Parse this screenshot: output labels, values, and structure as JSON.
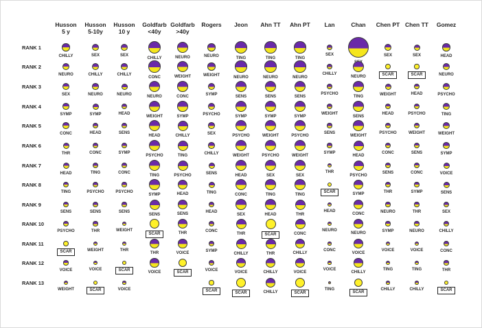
{
  "columns": [
    {
      "line1": "Husson",
      "line2": "5 y"
    },
    {
      "line1": "Husson",
      "line2": "5-10y"
    },
    {
      "line1": "Husson",
      "line2": "10 y"
    },
    {
      "line1": "Goldfarb",
      "line2": "<40y"
    },
    {
      "line1": "Goldfarb",
      "line2": ">40y"
    },
    {
      "line1": "Rogers",
      "line2": ""
    },
    {
      "line1": "Jeon",
      "line2": ""
    },
    {
      "line1": "Ahn TT",
      "line2": ""
    },
    {
      "line1": "Ahn PT",
      "line2": ""
    },
    {
      "line1": "Lan",
      "line2": ""
    },
    {
      "line1": "Chan",
      "line2": ""
    },
    {
      "line1": "Chen PT",
      "line2": ""
    },
    {
      "line1": "Chen TT",
      "line2": ""
    },
    {
      "line1": "Gomez",
      "line2": ""
    }
  ],
  "rows": [
    "RANK 1",
    "RANK 2",
    "RANK 3",
    "RANK 4",
    "RANK 5",
    "RANK 6",
    "RANK 7",
    "RANK 8",
    "RANK 9",
    "RANK 10",
    "RANK 11",
    "RANK 12",
    "RANK 13"
  ],
  "grid": [
    [
      {
        "label": "CHILLY",
        "size": 0.38,
        "purple": 0.5
      },
      {
        "label": "SEX",
        "size": 0.36,
        "purple": 0.55
      },
      {
        "label": "SEX",
        "size": 0.33,
        "purple": 0.55
      },
      {
        "label": "CHILLY",
        "size": 0.62,
        "purple": 0.55
      },
      {
        "label": "NEURO",
        "size": 0.55,
        "purple": 0.55
      },
      {
        "label": "NEURO",
        "size": 0.38,
        "purple": 0.55
      },
      {
        "label": "TING",
        "size": 0.62,
        "purple": 0.55
      },
      {
        "label": "TING",
        "size": 0.58,
        "purple": 0.55
      },
      {
        "label": "TING",
        "size": 0.58,
        "purple": 0.55
      },
      {
        "label": "SEX",
        "size": 0.28,
        "purple": 0.55
      },
      {
        "label": "SEX",
        "size": 1.0,
        "purple": 0.55
      },
      {
        "label": "SEX",
        "size": 0.33,
        "purple": 0.5
      },
      {
        "label": "SEX",
        "size": 0.3,
        "purple": 0.5
      },
      {
        "label": "HEAD",
        "size": 0.38,
        "purple": 0.55
      }
    ],
    [
      {
        "label": "NEURO",
        "size": 0.36,
        "purple": 0.5
      },
      {
        "label": "CHILLY",
        "size": 0.34,
        "purple": 0.55
      },
      {
        "label": "CHILLY",
        "size": 0.32,
        "purple": 0.55
      },
      {
        "label": "CONC",
        "size": 0.58,
        "purple": 0.55
      },
      {
        "label": "WEIGHT",
        "size": 0.55,
        "purple": 0.55
      },
      {
        "label": "WEIGHT",
        "size": 0.38,
        "purple": 0.55
      },
      {
        "label": "NEURO",
        "size": 0.58,
        "purple": 0.55
      },
      {
        "label": "NEURO",
        "size": 0.58,
        "purple": 0.55
      },
      {
        "label": "NEURO",
        "size": 0.58,
        "purple": 0.55
      },
      {
        "label": "CHILLY",
        "size": 0.26,
        "purple": 0.55
      },
      {
        "label": "NEURO",
        "size": 0.55,
        "purple": 0.55
      },
      {
        "label": "SCAR",
        "size": 0.26,
        "purple": 0.0,
        "scar": true
      },
      {
        "label": "SCAR",
        "size": 0.24,
        "purple": 0.0,
        "scar": true
      },
      {
        "label": "NEURO",
        "size": 0.36,
        "purple": 0.55
      }
    ],
    [
      {
        "label": "SEX",
        "size": 0.34,
        "purple": 0.5
      },
      {
        "label": "NEURO",
        "size": 0.32,
        "purple": 0.55
      },
      {
        "label": "NEURO",
        "size": 0.3,
        "purple": 0.55
      },
      {
        "label": "NEURO",
        "size": 0.56,
        "purple": 0.55
      },
      {
        "label": "CONC",
        "size": 0.52,
        "purple": 0.55
      },
      {
        "label": "SYMP",
        "size": 0.36,
        "purple": 0.55
      },
      {
        "label": "SENS",
        "size": 0.56,
        "purple": 0.55
      },
      {
        "label": "SENS",
        "size": 0.56,
        "purple": 0.55
      },
      {
        "label": "SENS",
        "size": 0.56,
        "purple": 0.55
      },
      {
        "label": "PSYCHO",
        "size": 0.26,
        "purple": 0.55
      },
      {
        "label": "TING",
        "size": 0.52,
        "purple": 0.55
      },
      {
        "label": "WEIGHT",
        "size": 0.3,
        "purple": 0.5
      },
      {
        "label": "HEAD",
        "size": 0.28,
        "purple": 0.5
      },
      {
        "label": "PSYCHO",
        "size": 0.36,
        "purple": 0.55
      }
    ],
    [
      {
        "label": "SYMP",
        "size": 0.32,
        "purple": 0.5
      },
      {
        "label": "SYMP",
        "size": 0.3,
        "purple": 0.55
      },
      {
        "label": "HEAD",
        "size": 0.28,
        "purple": 0.55
      },
      {
        "label": "WEIGHT",
        "size": 0.56,
        "purple": 0.55
      },
      {
        "label": "SYMP",
        "size": 0.52,
        "purple": 0.55
      },
      {
        "label": "PSYCHO",
        "size": 0.34,
        "purple": 0.55
      },
      {
        "label": "SYMP",
        "size": 0.56,
        "purple": 0.55
      },
      {
        "label": "SYMP",
        "size": 0.55,
        "purple": 0.55
      },
      {
        "label": "SYMP",
        "size": 0.55,
        "purple": 0.55
      },
      {
        "label": "WEIGHT",
        "size": 0.26,
        "purple": 0.55
      },
      {
        "label": "SENS",
        "size": 0.52,
        "purple": 0.55
      },
      {
        "label": "HEAD",
        "size": 0.28,
        "purple": 0.5
      },
      {
        "label": "PSYCHO",
        "size": 0.28,
        "purple": 0.5
      },
      {
        "label": "TING",
        "size": 0.34,
        "purple": 0.55
      }
    ],
    [
      {
        "label": "CONC",
        "size": 0.32,
        "purple": 0.5
      },
      {
        "label": "HEAD",
        "size": 0.28,
        "purple": 0.55
      },
      {
        "label": "SENS",
        "size": 0.26,
        "purple": 0.55
      },
      {
        "label": "HEAD",
        "size": 0.55,
        "purple": 0.55
      },
      {
        "label": "CHILLY",
        "size": 0.5,
        "purple": 0.55
      },
      {
        "label": "SEX",
        "size": 0.32,
        "purple": 0.55
      },
      {
        "label": "PSYCHO",
        "size": 0.55,
        "purple": 0.55
      },
      {
        "label": "WEIGHT",
        "size": 0.55,
        "purple": 0.55
      },
      {
        "label": "PSYCHO",
        "size": 0.55,
        "purple": 0.55
      },
      {
        "label": "SENS",
        "size": 0.24,
        "purple": 0.55
      },
      {
        "label": "WEIGHT",
        "size": 0.52,
        "purple": 0.55
      },
      {
        "label": "PSYCHO",
        "size": 0.28,
        "purple": 0.5
      },
      {
        "label": "WEIGHT",
        "size": 0.28,
        "purple": 0.5
      },
      {
        "label": "WEIGHT",
        "size": 0.34,
        "purple": 0.55
      }
    ],
    [
      {
        "label": "THR",
        "size": 0.3,
        "purple": 0.5
      },
      {
        "label": "CONC",
        "size": 0.28,
        "purple": 0.55
      },
      {
        "label": "SYMP",
        "size": 0.26,
        "purple": 0.55
      },
      {
        "label": "PSYCHO",
        "size": 0.54,
        "purple": 0.55
      },
      {
        "label": "TING",
        "size": 0.5,
        "purple": 0.55
      },
      {
        "label": "CHILLY",
        "size": 0.32,
        "purple": 0.55
      },
      {
        "label": "WEIGHT",
        "size": 0.55,
        "purple": 0.55
      },
      {
        "label": "PSYCHO",
        "size": 0.55,
        "purple": 0.55
      },
      {
        "label": "WEIGHT",
        "size": 0.55,
        "purple": 0.55
      },
      {
        "label": "SYMP",
        "size": 0.24,
        "purple": 0.55
      },
      {
        "label": "HEAD",
        "size": 0.5,
        "purple": 0.55
      },
      {
        "label": "CONC",
        "size": 0.28,
        "purple": 0.5
      },
      {
        "label": "SENS",
        "size": 0.26,
        "purple": 0.5
      },
      {
        "label": "SYMP",
        "size": 0.32,
        "purple": 0.55
      }
    ],
    [
      {
        "label": "HEAD",
        "size": 0.3,
        "purple": 0.5
      },
      {
        "label": "TING",
        "size": 0.28,
        "purple": 0.55
      },
      {
        "label": "CONC",
        "size": 0.26,
        "purple": 0.55
      },
      {
        "label": "TING",
        "size": 0.54,
        "purple": 0.55
      },
      {
        "label": "PSYCHO",
        "size": 0.5,
        "purple": 0.55
      },
      {
        "label": "SENS",
        "size": 0.3,
        "purple": 0.55
      },
      {
        "label": "HEAD",
        "size": 0.54,
        "purple": 0.55
      },
      {
        "label": "SEX",
        "size": 0.54,
        "purple": 0.55
      },
      {
        "label": "SEX",
        "size": 0.54,
        "purple": 0.55
      },
      {
        "label": "THR",
        "size": 0.22,
        "purple": 0.55
      },
      {
        "label": "PSYCHO",
        "size": 0.5,
        "purple": 0.55
      },
      {
        "label": "SENS",
        "size": 0.26,
        "purple": 0.5
      },
      {
        "label": "CONC",
        "size": 0.26,
        "purple": 0.5
      },
      {
        "label": "VOICE",
        "size": 0.3,
        "purple": 0.55
      }
    ],
    [
      {
        "label": "TING",
        "size": 0.28,
        "purple": 0.5
      },
      {
        "label": "PSYCHO",
        "size": 0.26,
        "purple": 0.55
      },
      {
        "label": "PSYCHO",
        "size": 0.24,
        "purple": 0.55
      },
      {
        "label": "SYMP",
        "size": 0.52,
        "purple": 0.55
      },
      {
        "label": "HEAD",
        "size": 0.48,
        "purple": 0.55
      },
      {
        "label": "TING",
        "size": 0.3,
        "purple": 0.55
      },
      {
        "label": "CONC",
        "size": 0.54,
        "purple": 0.55
      },
      {
        "label": "TING",
        "size": 0.52,
        "purple": 0.55
      },
      {
        "label": "TING",
        "size": 0.52,
        "purple": 0.55
      },
      {
        "label": "SCAR",
        "size": 0.22,
        "purple": 0.0,
        "scar": true
      },
      {
        "label": "SYMP",
        "size": 0.48,
        "purple": 0.55
      },
      {
        "label": "THR",
        "size": 0.26,
        "purple": 0.5
      },
      {
        "label": "SYMP",
        "size": 0.24,
        "purple": 0.5
      },
      {
        "label": "SENS",
        "size": 0.3,
        "purple": 0.55
      }
    ],
    [
      {
        "label": "SENS",
        "size": 0.28,
        "purple": 0.5
      },
      {
        "label": "SENS",
        "size": 0.26,
        "purple": 0.55
      },
      {
        "label": "SENS",
        "size": 0.24,
        "purple": 0.55
      },
      {
        "label": "SENS",
        "size": 0.5,
        "purple": 0.55
      },
      {
        "label": "SENS",
        "size": 0.46,
        "purple": 0.55
      },
      {
        "label": "HEAD",
        "size": 0.28,
        "purple": 0.55
      },
      {
        "label": "SEX",
        "size": 0.52,
        "purple": 0.55
      },
      {
        "label": "HEAD",
        "size": 0.52,
        "purple": 0.55
      },
      {
        "label": "THR",
        "size": 0.5,
        "purple": 0.55
      },
      {
        "label": "HEAD",
        "size": 0.2,
        "purple": 0.55
      },
      {
        "label": "CONC",
        "size": 0.48,
        "purple": 0.55
      },
      {
        "label": "NEURO",
        "size": 0.24,
        "purple": 0.5
      },
      {
        "label": "THR",
        "size": 0.24,
        "purple": 0.5
      },
      {
        "label": "SEX",
        "size": 0.28,
        "purple": 0.55
      }
    ],
    [
      {
        "label": "PSYCHO",
        "size": 0.26,
        "purple": 0.5
      },
      {
        "label": "THR",
        "size": 0.24,
        "purple": 0.55
      },
      {
        "label": "WEIGHT",
        "size": 0.22,
        "purple": 0.55
      },
      {
        "label": "SCAR",
        "size": 0.48,
        "purple": 0.0,
        "scar": true
      },
      {
        "label": "THR",
        "size": 0.46,
        "purple": 0.55
      },
      {
        "label": "CONC",
        "size": 0.28,
        "purple": 0.55
      },
      {
        "label": "THR",
        "size": 0.5,
        "purple": 0.55
      },
      {
        "label": "SCAR",
        "size": 0.5,
        "purple": 0.0,
        "scar": true
      },
      {
        "label": "CONC",
        "size": 0.5,
        "purple": 0.55
      },
      {
        "label": "NEURO",
        "size": 0.2,
        "purple": 0.55
      },
      {
        "label": "NEURO",
        "size": 0.46,
        "purple": 0.55
      },
      {
        "label": "SYMP",
        "size": 0.24,
        "purple": 0.5
      },
      {
        "label": "NEURO",
        "size": 0.24,
        "purple": 0.5
      },
      {
        "label": "CHILLY",
        "size": 0.28,
        "purple": 0.55
      }
    ],
    [
      {
        "label": "SCAR",
        "size": 0.26,
        "purple": 0.0,
        "scar": true
      },
      {
        "label": "WEIGHT",
        "size": 0.22,
        "purple": 0.55
      },
      {
        "label": "THR",
        "size": 0.2,
        "purple": 0.55
      },
      {
        "label": "THR",
        "size": 0.46,
        "purple": 0.55
      },
      {
        "label": "VOICE",
        "size": 0.44,
        "purple": 0.55
      },
      {
        "label": "SYMP",
        "size": 0.26,
        "purple": 0.55
      },
      {
        "label": "CHILLY",
        "size": 0.5,
        "purple": 0.55
      },
      {
        "label": "THR",
        "size": 0.5,
        "purple": 0.55
      },
      {
        "label": "CHILLY",
        "size": 0.48,
        "purple": 0.55
      },
      {
        "label": "CONC",
        "size": 0.18,
        "purple": 0.55
      },
      {
        "label": "VOICE",
        "size": 0.46,
        "purple": 0.55
      },
      {
        "label": "VOICE",
        "size": 0.22,
        "purple": 0.5
      },
      {
        "label": "VOICE",
        "size": 0.22,
        "purple": 0.5
      },
      {
        "label": "CONC",
        "size": 0.26,
        "purple": 0.55
      }
    ],
    [
      {
        "label": "VOICE",
        "size": 0.24,
        "purple": 0.5
      },
      {
        "label": "VOICE",
        "size": 0.22,
        "purple": 0.55
      },
      {
        "label": "SCAR",
        "size": 0.2,
        "purple": 0.0,
        "scar": true
      },
      {
        "label": "VOICE",
        "size": 0.44,
        "purple": 0.55
      },
      {
        "label": "SCAR",
        "size": 0.42,
        "purple": 0.0,
        "scar": true
      },
      {
        "label": "VOICE",
        "size": 0.26,
        "purple": 0.55
      },
      {
        "label": "VOICE",
        "size": 0.48,
        "purple": 0.55
      },
      {
        "label": "CHILLY",
        "size": 0.48,
        "purple": 0.55
      },
      {
        "label": "VOICE",
        "size": 0.46,
        "purple": 0.55
      },
      {
        "label": "VOICE",
        "size": 0.18,
        "purple": 0.55
      },
      {
        "label": "CHILLY",
        "size": 0.44,
        "purple": 0.55
      },
      {
        "label": "TING",
        "size": 0.2,
        "purple": 0.5
      },
      {
        "label": "TING",
        "size": 0.2,
        "purple": 0.5
      },
      {
        "label": "THR",
        "size": 0.24,
        "purple": 0.55
      }
    ],
    [
      {
        "label": "WEIGHT",
        "size": 0.22,
        "purple": 0.5
      },
      {
        "label": "SCAR",
        "size": 0.2,
        "purple": 0.0,
        "scar": true
      },
      {
        "label": "VOICE",
        "size": 0.18,
        "purple": 0.55
      },
      {
        "label": "",
        "size": 0.0,
        "purple": 0.55
      },
      {
        "label": "",
        "size": 0.0,
        "purple": 0.55
      },
      {
        "label": "SCAR",
        "size": 0.24,
        "purple": 0.0,
        "scar": true
      },
      {
        "label": "SCAR",
        "size": 0.48,
        "purple": 0.0,
        "scar": true
      },
      {
        "label": "CHILLY",
        "size": 0.46,
        "purple": 0.55
      },
      {
        "label": "SCAR",
        "size": 0.48,
        "purple": 0.0,
        "scar": true
      },
      {
        "label": "TING",
        "size": 0.16,
        "purple": 0.55
      },
      {
        "label": "SCAR",
        "size": 0.42,
        "purple": 0.0,
        "scar": true
      },
      {
        "label": "CHILLY",
        "size": 0.18,
        "purple": 0.5
      },
      {
        "label": "CHILLY",
        "size": 0.18,
        "purple": 0.5
      },
      {
        "label": "SCAR",
        "size": 0.22,
        "purple": 0.0,
        "scar": true
      }
    ]
  ],
  "colors": {
    "purple": "#6a2aa8",
    "yellow": "#f5e61c",
    "scar_fill": "#fff12a",
    "outline": "#3a3a3a"
  }
}
